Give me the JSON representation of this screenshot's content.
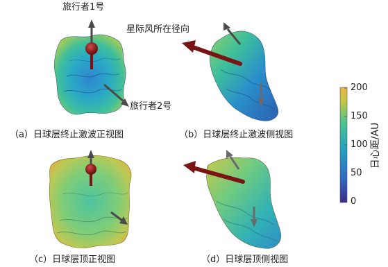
{
  "labels": {
    "voyager1": "旅行者1号",
    "voyager2": "旅行者2号",
    "ism_direction": "星际风所在径向"
  },
  "captions": {
    "a": "（a）日球层终止激波正视图",
    "b": "（b）日球层终止激波侧视图",
    "c": "（c）日球层顶正视图",
    "d": "（d）日球层顶侧视图"
  },
  "colorbar": {
    "title": "日心距/AU",
    "ticks": [
      "200",
      "150",
      "100",
      "50",
      "0"
    ],
    "min": 0,
    "max": 200,
    "colors": [
      "#3b2f8a",
      "#2f6bc8",
      "#22a6c0",
      "#4fc48c",
      "#c4c740",
      "#e8b44a"
    ]
  },
  "colors": {
    "arrow_red": "#7a1414",
    "arrow_grey": "#4a4a4a"
  }
}
